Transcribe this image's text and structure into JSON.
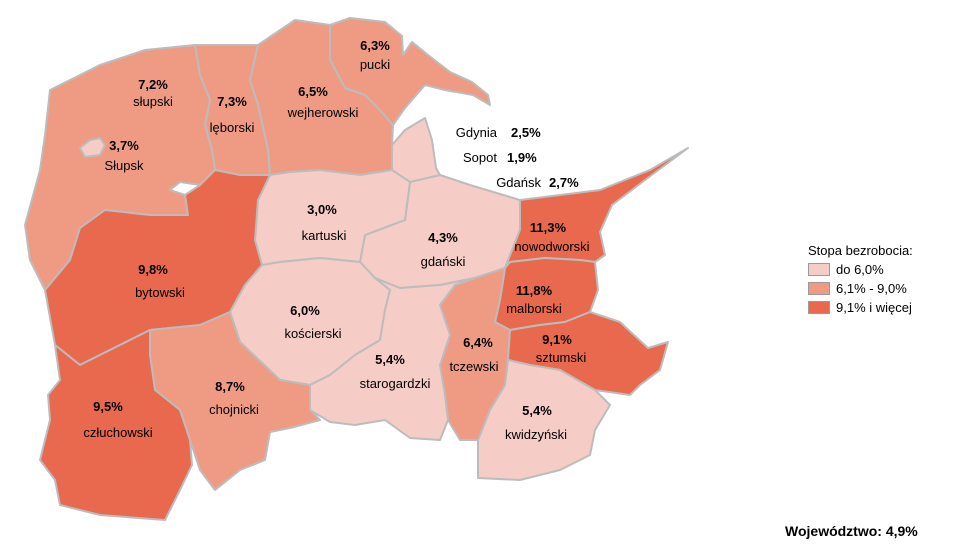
{
  "regions": {
    "pucki": {
      "value": "6,3%",
      "name": "pucki"
    },
    "slupski": {
      "value": "7,2%",
      "name": "słupski"
    },
    "leborski": {
      "value": "7,3%",
      "name": "lęborski"
    },
    "wejherowski": {
      "value": "6,5%",
      "name": "wejherowski"
    },
    "slupsk": {
      "value": "3,7%",
      "name": "Słupsk"
    },
    "kartuski": {
      "value": "3,0%",
      "name": "kartuski"
    },
    "gdanski": {
      "value": "4,3%",
      "name": "gdański"
    },
    "nowodworski": {
      "value": "11,3%",
      "name": "nowodworski"
    },
    "bytowski": {
      "value": "9,8%",
      "name": "bytowski"
    },
    "malborski": {
      "value": "11,8%",
      "name": "malborski"
    },
    "koscierski": {
      "value": "6,0%",
      "name": "kościerski"
    },
    "tczewski": {
      "value": "6,4%",
      "name": "tczewski"
    },
    "sztumski": {
      "value": "9,1%",
      "name": "sztumski"
    },
    "starogardzki": {
      "value": "5,4%",
      "name": "starogardzki"
    },
    "chojnicki": {
      "value": "8,7%",
      "name": "chojnicki"
    },
    "czluchowski": {
      "value": "9,5%",
      "name": "człuchowski"
    },
    "kwidzynski": {
      "value": "5,4%",
      "name": "kwidzyński"
    }
  },
  "cities": [
    {
      "name": "Gdynia",
      "value": "2,5%"
    },
    {
      "name": "Sopot",
      "value": "1,9%"
    },
    {
      "name": "Gdańsk",
      "value": "2,7%"
    }
  ],
  "legend": {
    "title": "Stopa bezrobocia:",
    "items": [
      {
        "label": "do 6,0%",
        "color": "#f6cdc6"
      },
      {
        "label": "6,1% - 9,0%",
        "color": "#ef9b84"
      },
      {
        "label": "9,1% i więcej",
        "color": "#e8694d"
      }
    ]
  },
  "total": "Województwo: 4,9%"
}
